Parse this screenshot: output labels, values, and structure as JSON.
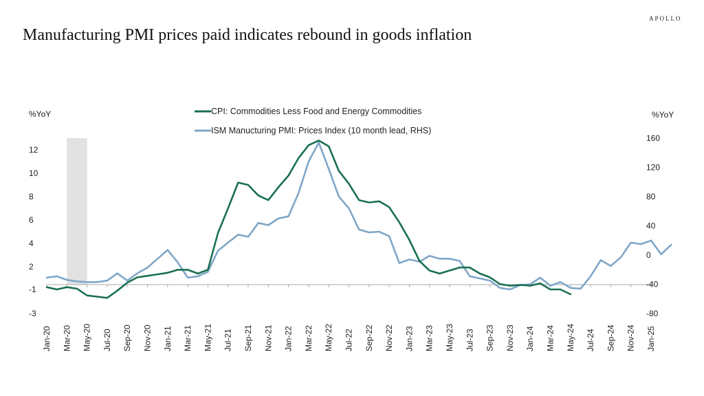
{
  "brand": "APOLLO",
  "title": "Manufacturing PMI prices paid indicates rebound in goods inflation",
  "colors": {
    "cpi": "#1a6f52",
    "ism": "#7fa6c8",
    "recession": "#e2e2e2",
    "axis": "#aaaaaa"
  },
  "chart_data": {
    "type": "line",
    "x_labels": [
      "Jan-20",
      "Mar-20",
      "May-20",
      "Jul-20",
      "Sep-20",
      "Nov-20",
      "Jan-21",
      "Mar-21",
      "May-21",
      "Jul-21",
      "Sep-21",
      "Nov-21",
      "Jan-22",
      "Mar-22",
      "May-22",
      "Jul-22",
      "Sep-22",
      "Nov-22",
      "Jan-23",
      "Mar-23",
      "May-23",
      "Jul-23",
      "Sep-23",
      "Nov-23",
      "Jan-24",
      "Mar-24",
      "May-24",
      "Jul-24",
      "Sep-24",
      "Nov-24",
      "Jan-25"
    ],
    "y_left": {
      "label": "%YoY",
      "range": [
        -3,
        13
      ],
      "ticks": [
        -3,
        -1,
        2,
        4,
        6,
        8,
        10,
        12
      ]
    },
    "y_right": {
      "label": "%YoY",
      "range": [
        -80,
        160
      ],
      "ticks": [
        -80,
        -40,
        0,
        40,
        80,
        120,
        160
      ]
    },
    "recession_band": {
      "start": 1,
      "end": 2
    },
    "series": [
      {
        "name": "CPI: Commodities Less Food and Energy Commodities",
        "axis": "left",
        "start_index": 0,
        "values": [
          -0.7,
          -1.0,
          -0.7,
          -0.9,
          -1.5,
          -1.6,
          -1.7,
          -1.1,
          -0.1,
          0.6,
          0.8,
          1.0,
          1.2,
          1.6,
          1.6,
          1.1,
          1.6,
          4.9,
          7.0,
          9.2,
          9.0,
          8.1,
          7.7,
          8.8,
          9.8,
          11.3,
          12.4,
          12.8,
          12.3,
          10.2,
          9.1,
          7.7,
          7.5,
          7.6,
          7.1,
          5.8,
          4.3,
          2.5,
          1.5,
          1.1,
          1.5,
          1.9,
          1.9,
          1.1,
          0.6,
          -0.3,
          -0.5,
          -0.4,
          -0.5,
          -0.2,
          -1.0,
          -1.0,
          -1.4
        ]
      },
      {
        "name": "ISM Manucturing PMI: Prices Index (10 month lead, RHS)",
        "axis": "right",
        "start_index": 0,
        "values": [
          -31,
          -29,
          -34,
          -36,
          -37,
          -37,
          -35,
          -25,
          -35,
          -25,
          -17,
          -5,
          7,
          -10,
          -31,
          -29,
          -23,
          6,
          17,
          28,
          25,
          44,
          41,
          50,
          53,
          85,
          128,
          154,
          118,
          80,
          64,
          35,
          31,
          32,
          26,
          -11,
          -6,
          -9,
          -1,
          -5,
          -5,
          -8,
          -29,
          -32,
          -35,
          -45,
          -47,
          -41,
          -40,
          -31,
          -42,
          -37,
          -45,
          -46,
          -29,
          -7,
          -15,
          -3,
          17,
          15,
          20,
          1,
          14
        ]
      }
    ]
  }
}
